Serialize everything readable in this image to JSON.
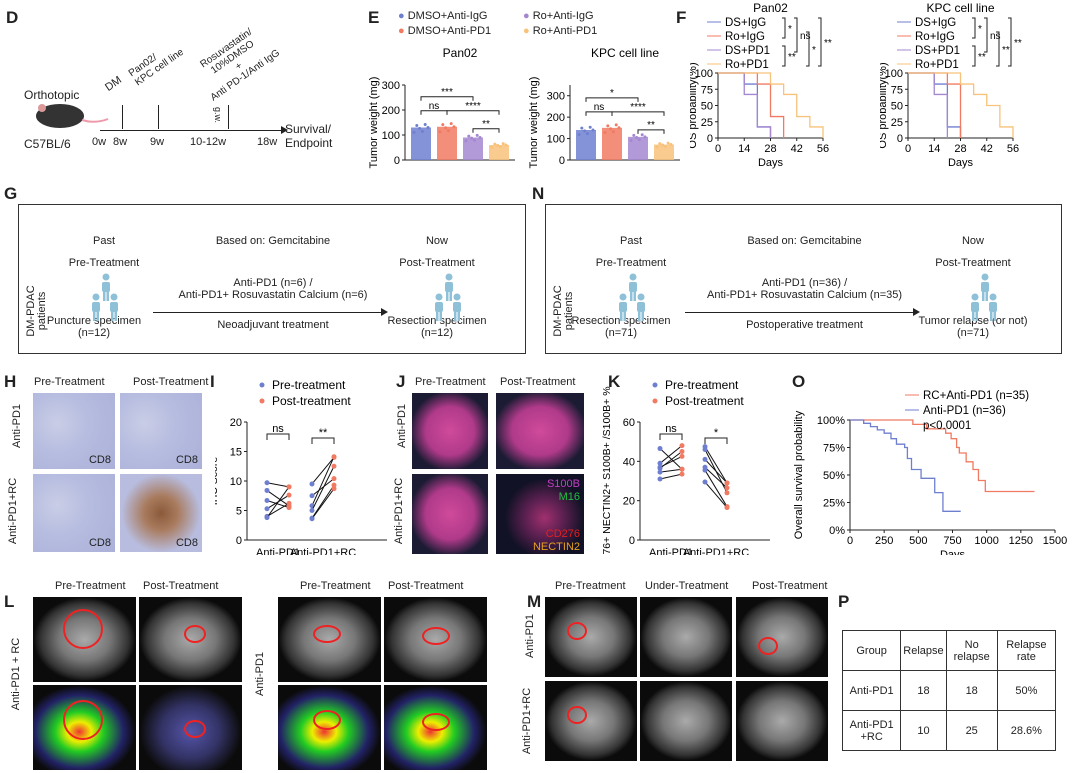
{
  "panels": {
    "D": "D",
    "E": "E",
    "F": "F",
    "G": "G",
    "N": "N",
    "H": "H",
    "I": "I",
    "J": "J",
    "K": "K",
    "O": "O",
    "L": "L",
    "M": "M",
    "P": "P"
  },
  "D": {
    "orthotopic": "Orthotopic",
    "strain": "C57BL/6",
    "ticks": [
      "0w",
      "8w",
      "9w",
      "10-12w",
      "18w"
    ],
    "dm": "DM",
    "cell": "Pan02/\nKPC cell line",
    "treat": "Rosuvastatin/\n10%DMSO\n+\nAnti PD-1/Anti IgG",
    "gw": "g.w.",
    "end": "Survival/\nEndpoint"
  },
  "G": {
    "past": "Past",
    "pre": "Pre-Treatment",
    "based": "Based on: Gemcitabine",
    "now": "Now",
    "post": "Post-Treatment",
    "patients": "DM-PDAC patients",
    "arm": "Anti-PD1 (n=6) /\nAnti-PD1+ Rosuvastatin Calcium (n=6)",
    "type": "Neoadjuvant treatment",
    "left_spec": "Puncture specimen\n(n=12)",
    "right_spec": "Resection specimen\n(n=12)"
  },
  "N": {
    "past": "Past",
    "pre": "Pre-Treatment",
    "based": "Based on: Gemcitabine",
    "now": "Now",
    "post": "Post-Treatment",
    "patients": "DM-PDAC patients",
    "arm": "Anti-PD1 (n=36) /\nAnti-PD1+ Rosuvastatin Calcium (n=35)",
    "type": "Postoperative treatment",
    "left_spec": "Resection specimen\n(n=71)",
    "right_spec": "Tumor relapse (or not)\n(n=71)"
  },
  "H": {
    "cols": [
      "Pre-Treatment",
      "Post-Treatment"
    ],
    "rows": [
      "Anti-PD1",
      "Anti-PD1+RC"
    ],
    "stain": "CD8"
  },
  "J": {
    "cols": [
      "Pre-Treatment",
      "Post-Treatment"
    ],
    "rows": [
      "Anti-PD1",
      "Anti-PD1+RC"
    ],
    "markers": [
      {
        "label": "S100B",
        "color": "#c040c0"
      },
      {
        "label": "M16",
        "color": "#20c040"
      },
      {
        "label": "CD276",
        "color": "#e02020"
      },
      {
        "label": "NECTIN2",
        "color": "#e8a020"
      }
    ]
  },
  "L": {
    "cols": [
      "Pre-Treatment",
      "Post-Treatment",
      "Pre-Treatment",
      "Post-Treatment"
    ],
    "rows": [
      "Anti-PD1 + RC",
      "Anti-PD1"
    ]
  },
  "M": {
    "cols": [
      "Pre-Treatment",
      "Under-Treatment",
      "Post-Treatment"
    ],
    "rows": [
      "Anti-PD1",
      "Anti-PD1+RC"
    ]
  },
  "P": {
    "headers": [
      "Group",
      "Relapse",
      "No relapse",
      "Relapse rate"
    ],
    "rows": [
      [
        "Anti-PD1",
        "18",
        "18",
        "50%"
      ],
      [
        "Anti-PD1 +RC",
        "10",
        "25",
        "28.6%"
      ]
    ]
  },
  "colors": {
    "blue": "#6f7fd0",
    "red": "#f07a62",
    "purple": "#a487d0",
    "orange": "#f8c27a"
  },
  "chart_data": [
    {
      "id": "E1",
      "type": "bar",
      "title": "Pan02",
      "ylabel": "Tumor weight (mg)",
      "ylim": [
        0,
        300
      ],
      "yticks": [
        0,
        100,
        200,
        300
      ],
      "legend": [
        "DMSO+Anti-IgG",
        "DMSO+Anti-PD1",
        "Ro+Anti-IgG",
        "Ro+Anti-PD1"
      ],
      "categories": [
        "DMSO+Anti-IgG",
        "DMSO+Anti-PD1",
        "Ro+Anti-IgG",
        "Ro+Anti-PD1"
      ],
      "values": [
        130,
        133,
        90,
        60
      ],
      "sig": [
        "***",
        "ns",
        "****",
        "**"
      ]
    },
    {
      "id": "E2",
      "type": "bar",
      "title": "KPC cell line",
      "ylabel": "Tumor weight (mg)",
      "ylim": [
        0,
        350
      ],
      "yticks": [
        0,
        100,
        200,
        300
      ],
      "categories": [
        "DMSO+Anti-IgG",
        "DMSO+Anti-PD1",
        "Ro+Anti-IgG",
        "Ro+Anti-PD1"
      ],
      "values": [
        140,
        150,
        108,
        72
      ],
      "sig": [
        "*",
        "ns",
        "****",
        "**"
      ]
    },
    {
      "id": "F1",
      "type": "line",
      "title": "Pan02",
      "xlabel": "Days",
      "ylabel": "OS probability(%)",
      "xlim": [
        0,
        56
      ],
      "ylim": [
        0,
        100
      ],
      "xticks": [
        0,
        14,
        28,
        42,
        56
      ],
      "yticks": [
        0,
        25,
        50,
        75,
        100
      ],
      "sig": [
        "*",
        "ns",
        "**",
        "*",
        "**"
      ],
      "series": [
        {
          "name": "DS+IgG",
          "steps": [
            [
              0,
              100
            ],
            [
              14,
              83
            ],
            [
              21,
              17
            ],
            [
              28,
              0
            ]
          ]
        },
        {
          "name": "Ro+IgG",
          "steps": [
            [
              0,
              100
            ],
            [
              21,
              83
            ],
            [
              28,
              33
            ],
            [
              35,
              0
            ]
          ]
        },
        {
          "name": "DS+PD1",
          "steps": [
            [
              0,
              100
            ],
            [
              14,
              67
            ],
            [
              21,
              17
            ],
            [
              28,
              0
            ]
          ]
        },
        {
          "name": "Ro+PD1",
          "steps": [
            [
              0,
              100
            ],
            [
              28,
              83
            ],
            [
              35,
              67
            ],
            [
              42,
              33
            ],
            [
              49,
              17
            ],
            [
              56,
              0
            ]
          ]
        }
      ]
    },
    {
      "id": "F2",
      "type": "line",
      "title": "KPC cell line",
      "xlabel": "Days",
      "ylabel": "OS probability(%)",
      "xlim": [
        0,
        56
      ],
      "ylim": [
        0,
        100
      ],
      "xticks": [
        0,
        14,
        28,
        42,
        56
      ],
      "yticks": [
        0,
        25,
        50,
        75,
        100
      ],
      "sig": [
        "*",
        "ns",
        "**",
        "**",
        "**"
      ],
      "series": [
        {
          "name": "DS+IgG",
          "steps": [
            [
              0,
              100
            ],
            [
              14,
              83
            ],
            [
              21,
              17
            ],
            [
              28,
              0
            ]
          ]
        },
        {
          "name": "Ro+IgG",
          "steps": [
            [
              0,
              100
            ],
            [
              21,
              83
            ],
            [
              28,
              0
            ]
          ]
        },
        {
          "name": "DS+PD1",
          "steps": [
            [
              0,
              100
            ],
            [
              14,
              67
            ],
            [
              21,
              0
            ]
          ]
        },
        {
          "name": "Ro+PD1",
          "steps": [
            [
              0,
              100
            ],
            [
              28,
              83
            ],
            [
              35,
              67
            ],
            [
              42,
              50
            ],
            [
              49,
              17
            ],
            [
              56,
              0
            ]
          ]
        }
      ]
    },
    {
      "id": "I",
      "type": "scatter",
      "ylabel": "IHC Score",
      "ylim": [
        0,
        20
      ],
      "yticks": [
        0,
        5,
        10,
        15,
        20
      ],
      "categories": [
        "Anti-PD1",
        "Anti-PD1+RC"
      ],
      "legend": [
        "Pre-treatment",
        "Post-treatment"
      ],
      "sig": [
        "ns",
        "**"
      ],
      "pairs": [
        [
          [
            9.7,
            9.0
          ],
          [
            8.4,
            5.8
          ],
          [
            6.7,
            5.5
          ],
          [
            5.3,
            7.6
          ],
          [
            4.0,
            6.2
          ],
          [
            3.8,
            9.0
          ]
        ],
        [
          [
            9.5,
            14.0
          ],
          [
            7.5,
            10.4
          ],
          [
            5.8,
            14.1
          ],
          [
            5.0,
            12.5
          ],
          [
            3.7,
            9.3
          ],
          [
            3.6,
            8.7
          ]
        ]
      ]
    },
    {
      "id": "K",
      "type": "scatter",
      "ylabel": "CD276+ NECTIN2+ S100B+ /S100B+ %",
      "ylim": [
        0,
        60
      ],
      "yticks": [
        0,
        20,
        40,
        60
      ],
      "categories": [
        "Anti-PD1",
        "Anti-PD1+RC"
      ],
      "legend": [
        "Pre-treatment",
        "Post-treatment"
      ],
      "sig": [
        "ns",
        "*"
      ],
      "pairs": [
        [
          [
            46.5,
            36
          ],
          [
            39,
            48
          ],
          [
            37,
            42.5
          ],
          [
            36.5,
            45
          ],
          [
            34.5,
            36
          ],
          [
            31,
            33.5
          ]
        ],
        [
          [
            47.5,
            29
          ],
          [
            46,
            24
          ],
          [
            41,
            29
          ],
          [
            37,
            26.5
          ],
          [
            35.5,
            17
          ],
          [
            29.5,
            16.5
          ]
        ]
      ]
    },
    {
      "id": "O",
      "type": "line",
      "xlabel": "Days",
      "ylabel": "Overall survival probability",
      "xlim": [
        0,
        1500
      ],
      "ylim": [
        0,
        100
      ],
      "xticks": [
        0,
        250,
        500,
        750,
        1000,
        1250,
        1500
      ],
      "yticks": [
        "0%",
        "25%",
        "50%",
        "75%",
        "100%"
      ],
      "pvalue": "p<0.0001",
      "series": [
        {
          "name": "RC+Anti-PD1 (n=35)",
          "steps": [
            [
              0,
              100
            ],
            [
              460,
              96
            ],
            [
              560,
              92
            ],
            [
              700,
              88
            ],
            [
              740,
              83
            ],
            [
              780,
              75
            ],
            [
              800,
              70
            ],
            [
              850,
              62
            ],
            [
              900,
              55
            ],
            [
              940,
              45
            ],
            [
              990,
              35
            ],
            [
              1350,
              35
            ]
          ]
        },
        {
          "name": "Anti-PD1 (n=36)",
          "steps": [
            [
              0,
              100
            ],
            [
              100,
              97
            ],
            [
              150,
              94
            ],
            [
              200,
              91
            ],
            [
              250,
              88
            ],
            [
              300,
              83
            ],
            [
              340,
              78
            ],
            [
              400,
              75
            ],
            [
              420,
              65
            ],
            [
              450,
              55
            ],
            [
              520,
              47
            ],
            [
              620,
              34
            ],
            [
              680,
              17
            ],
            [
              810,
              17
            ]
          ]
        }
      ]
    }
  ]
}
